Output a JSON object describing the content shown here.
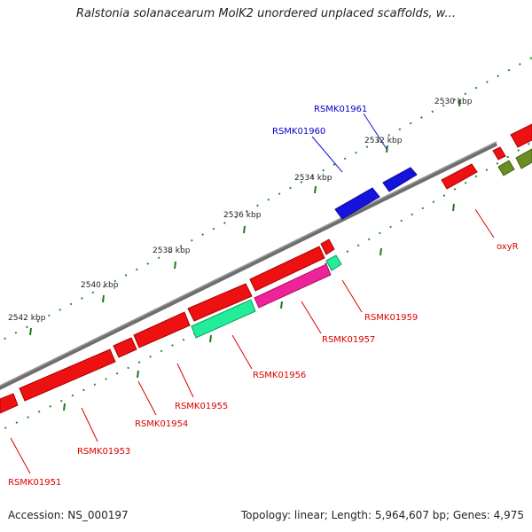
{
  "title": "Ralstonia solanacearum MolK2 unordered unplaced scaffolds, w...",
  "footer": {
    "accession": "Accession: NS_000197",
    "summary": "Topology: linear; Length: 5,964,607 bp; Genes: 4,975"
  },
  "scale_labels": [
    "2530 kbp",
    "2532 kbp",
    "2534 kbp",
    "2536 kbp",
    "2538 kbp",
    "2540 kbp",
    "2542 kbp"
  ],
  "gene_labels": {
    "RSMK01961": "RSMK01961",
    "RSMK01960": "RSMK01960",
    "oxyR": "oxyR",
    "RSMK01959": "RSMK01959",
    "RSMK01957": "RSMK01957",
    "RSMK01956": "RSMK01956",
    "RSMK01955": "RSMK01955",
    "RSMK01954": "RSMK01954",
    "RSMK01953": "RSMK01953",
    "RSMK01951": "RSMK01951"
  },
  "colors": {
    "backbone": "#7a7a7a",
    "ticks": "#2a8a2a",
    "gene_red": "#ee1111",
    "gene_blue": "#1414dd",
    "gene_green": "#22ee99",
    "gene_magenta": "#ee2299",
    "gene_olive": "#6b8e23",
    "label_red": "#dd0000",
    "label_blue": "#0000cc"
  }
}
